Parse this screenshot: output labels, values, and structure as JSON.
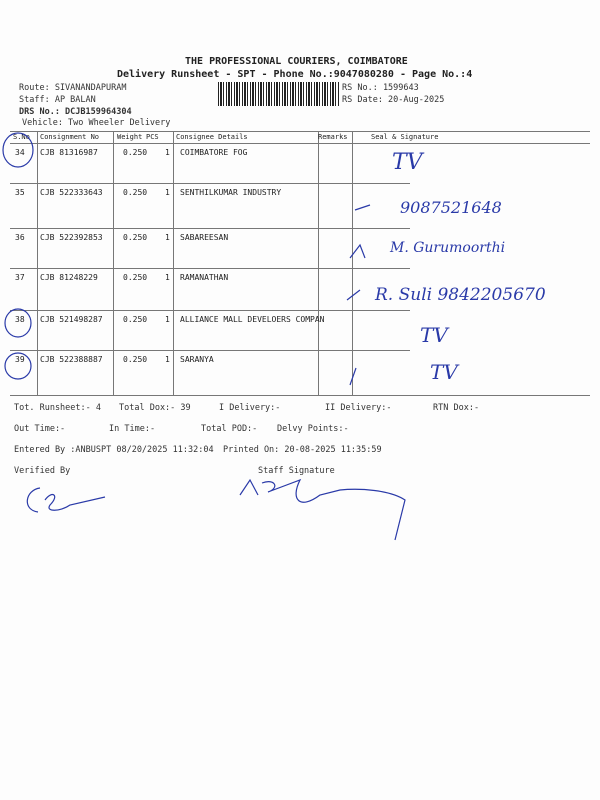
{
  "header": {
    "company": "THE PROFESSIONAL COURIERS, COIMBATORE",
    "subtitle": "Delivery Runsheet - SPT - Phone No.:9047080280 - Page No.:4",
    "route": "Route: SIVANANDAPURAM",
    "staff": "Staff: AP BALAN",
    "drs": "DRS No.: DCJB159964304",
    "vehicle": "Vehicle: Two Wheeler Delivery",
    "rs_no": "RS No.: 1599643",
    "rs_date": "RS Date: 20-Aug-2025"
  },
  "table": {
    "columns": [
      "S.No",
      "Consignment No",
      "Weight",
      "PCS",
      "Consignee Details",
      "Remarks",
      "Seal & Signature"
    ],
    "rows": [
      {
        "sno": "34",
        "cn": "CJB 81316987",
        "weight": "0.250",
        "pcs": "1",
        "consignee": "COIMBATORE FOG",
        "hand": "TV"
      },
      {
        "sno": "35",
        "cn": "CJB 522333643",
        "weight": "0.250",
        "pcs": "1",
        "consignee": "SENTHILKUMAR INDUSTRY",
        "hand": "9087521648"
      },
      {
        "sno": "36",
        "cn": "CJB 522392853",
        "weight": "0.250",
        "pcs": "1",
        "consignee": "SABAREESAN",
        "hand": "M. Gurumoorthi"
      },
      {
        "sno": "37",
        "cn": "CJB 81248229",
        "weight": "0.250",
        "pcs": "1",
        "consignee": "RAMANATHAN",
        "hand": "R. Suli 9842205670"
      },
      {
        "sno": "38",
        "cn": "CJB 521498287",
        "weight": "0.250",
        "pcs": "1",
        "consignee": "ALLIANCE MALL DEVELOERS COMPAN",
        "hand": "TV"
      },
      {
        "sno": "39",
        "cn": "CJB 522388887",
        "weight": "0.250",
        "pcs": "1",
        "consignee": "SARANYA",
        "hand": "TV"
      }
    ]
  },
  "footer": {
    "tot_runsheet": "Tot. Runsheet:- 4",
    "total_dox": "Total Dox:-   39",
    "i_delivery": "I Delivery:-",
    "ii_delivery": "II Delivery:-",
    "rtn_dox": "RTN Dox:-",
    "out_time": "Out Time:-",
    "in_time": "In Time:-",
    "total_pod": "Total POD:-",
    "delvy_points": "Delvy Points:-",
    "entered_by": "Entered By :ANBUSPT 08/20/2025 11:32:04",
    "printed_on": "Printed On: 20-08-2025 11:35:59",
    "verified_by": "Verified By",
    "staff_signature": "Staff Signature"
  },
  "colors": {
    "ink": "#2a3aa8",
    "print": "#222222"
  }
}
